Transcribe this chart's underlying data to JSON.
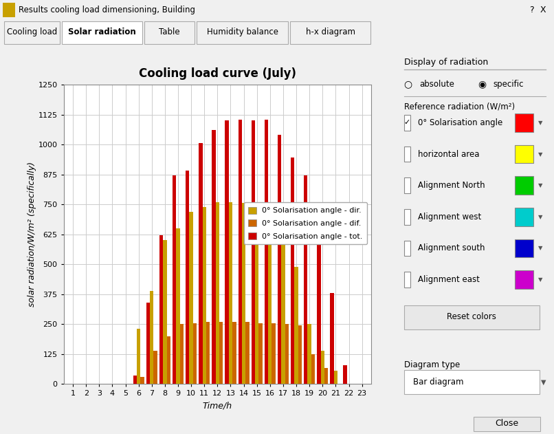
{
  "title": "Cooling load curve (July)",
  "xlabel": "Time/h",
  "ylabel": "solar radiation/W/m² (specifically)",
  "hours": [
    1,
    2,
    3,
    4,
    5,
    6,
    7,
    8,
    9,
    10,
    11,
    12,
    13,
    14,
    15,
    16,
    17,
    18,
    19,
    20,
    21,
    22,
    23
  ],
  "dir_values": [
    0,
    0,
    0,
    0,
    0,
    230,
    390,
    600,
    650,
    720,
    740,
    760,
    760,
    755,
    750,
    640,
    620,
    490,
    250,
    140,
    55,
    0,
    0
  ],
  "dif_values": [
    0,
    0,
    0,
    0,
    0,
    30,
    140,
    200,
    250,
    255,
    260,
    260,
    260,
    260,
    255,
    255,
    250,
    245,
    125,
    68,
    0,
    0,
    0
  ],
  "tot_values": [
    0,
    0,
    0,
    0,
    0,
    35,
    340,
    620,
    870,
    890,
    1005,
    1060,
    1100,
    1105,
    1100,
    1105,
    1040,
    945,
    870,
    640,
    380,
    80,
    0
  ],
  "dir_color": "#C8A000",
  "dif_color": "#CC6600",
  "tot_color": "#CC0000",
  "ylim": [
    0,
    1250
  ],
  "yticks": [
    0,
    125,
    250,
    375,
    500,
    625,
    750,
    875,
    1000,
    1125,
    1250
  ],
  "bg_color": "#F0F0F0",
  "plot_area_color": "#FFFFFF",
  "grid_color": "#CCCCCC",
  "legend_labels": [
    "0° Solarisation angle - dir.",
    "0° Solarisation angle - dif.",
    "0° Solarisation angle - tot."
  ],
  "bar_width": 0.28,
  "title_fontsize": 12,
  "axis_label_fontsize": 8,
  "tick_fontsize": 8,
  "legend_fontsize": 8,
  "window_title": "Results cooling load dimensioning, Building",
  "tab_labels": [
    "Cooling load",
    "Solar radiation",
    "Table",
    "Humidity balance",
    "h-x diagram"
  ],
  "active_tab": 1,
  "right_panel_title": "Display of radiation",
  "ref_radiation_label": "Reference radiation (W/m²)",
  "radio_labels": [
    "absolute",
    "specific"
  ],
  "active_radio": 1,
  "checkbox_labels": [
    "0° Solarisation angle",
    "horizontal area",
    "Alignment North",
    "Alignment west",
    "Alignment south",
    "Alignment east"
  ],
  "checkbox_checked": [
    true,
    false,
    false,
    false,
    false,
    false
  ],
  "checkbox_colors": [
    "#FF0000",
    "#FFFF00",
    "#00CC00",
    "#00CCCC",
    "#0000CC",
    "#CC00CC"
  ],
  "diagram_type_label": "Diagram type",
  "diagram_type_value": "Bar diagram"
}
